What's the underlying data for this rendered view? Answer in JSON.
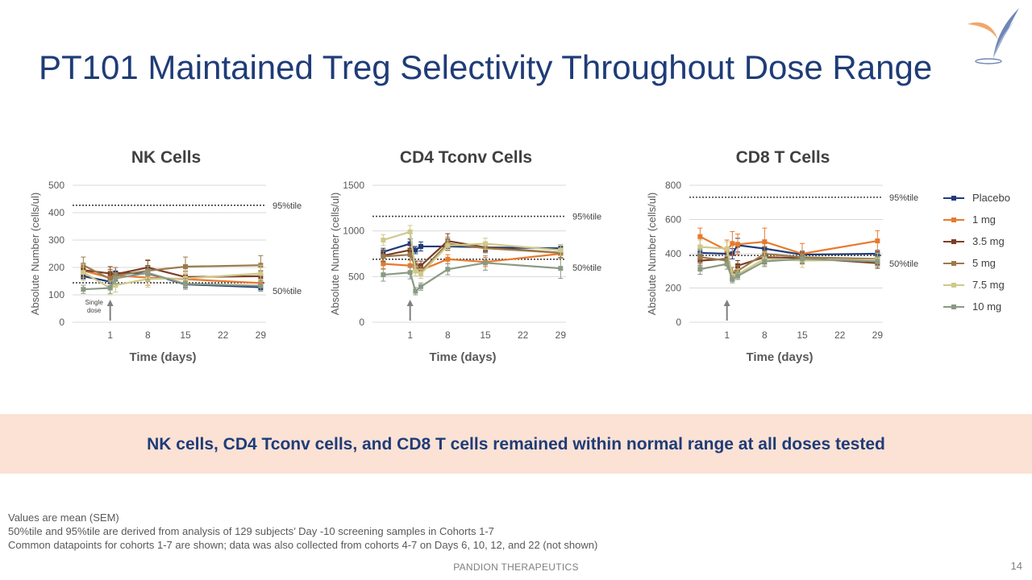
{
  "slide": {
    "title": "PT101 Maintained Treg Selectivity Throughout Dose Range",
    "banner": "NK cells, CD4 Tconv cells, and CD8 T cells remained within normal range at all doses tested",
    "footnotes": [
      "Values are mean (SEM)",
      "50%tile and 95%tile are derived from analysis of 129 subjects’ Day -10 screening samples in Cohorts 1-7",
      "Common datapoints for cohorts 1-7 are shown; data was also collected from cohorts 4-7 on Days 6, 10, 12, and 22 (not shown)"
    ],
    "footer": "PANDION THERAPEUTICS",
    "page_number": "14",
    "colors": {
      "title": "#1f3c78",
      "banner_bg": "#fbe2d5",
      "banner_text": "#1f3c78"
    }
  },
  "legend": [
    {
      "name": "Placebo",
      "color": "#1f3c78"
    },
    {
      "name": "1 mg",
      "color": "#e8792d"
    },
    {
      "name": "3.5 mg",
      "color": "#7b3f27"
    },
    {
      "name": "5 mg",
      "color": "#9b7b4b"
    },
    {
      "name": "7.5 mg",
      "color": "#cfc98b"
    },
    {
      "name": "10 mg",
      "color": "#8a9a84"
    }
  ],
  "chart_data": [
    {
      "type": "line",
      "title": "NK Cells",
      "xlabel": "Time (days)",
      "ylabel": "Absolute Number (cells/ul)",
      "x_ticks": [
        1,
        8,
        15,
        22,
        29
      ],
      "xlim": [
        -6,
        30
      ],
      "ylim": [
        0,
        500
      ],
      "y_ticks": [
        0,
        100,
        200,
        300,
        400,
        500
      ],
      "reference_lines": [
        {
          "label": "95%tile",
          "value": 427
        },
        {
          "label": "50%tile",
          "value": 144
        }
      ],
      "annotation": {
        "text": [
          "Single",
          "dose"
        ],
        "x": 1
      },
      "series": [
        {
          "name": "Placebo",
          "x": [
            -4,
            1,
            2,
            8,
            15,
            29
          ],
          "y": [
            168,
            148,
            180,
            178,
            138,
            128
          ],
          "err": [
            10,
            15,
            20,
            18,
            12,
            10
          ]
        },
        {
          "name": "1 mg",
          "x": [
            -4,
            1,
            2,
            8,
            15,
            29
          ],
          "y": [
            188,
            162,
            170,
            163,
            157,
            143
          ],
          "err": [
            25,
            30,
            30,
            28,
            20,
            15
          ]
        },
        {
          "name": "3.5 mg",
          "x": [
            -4,
            1,
            2,
            8,
            15,
            29
          ],
          "y": [
            190,
            178,
            175,
            200,
            165,
            168
          ],
          "err": [
            25,
            25,
            25,
            25,
            20,
            20
          ]
        },
        {
          "name": "5 mg",
          "x": [
            -4,
            1,
            2,
            8,
            15,
            29
          ],
          "y": [
            208,
            158,
            170,
            188,
            203,
            208
          ],
          "err": [
            30,
            35,
            30,
            40,
            35,
            35
          ]
        },
        {
          "name": "7.5 mg",
          "x": [
            -4,
            1,
            2,
            8,
            15,
            29
          ],
          "y": [
            182,
            125,
            135,
            158,
            160,
            178
          ],
          "err": [
            30,
            25,
            25,
            30,
            30,
            30
          ]
        },
        {
          "name": "10 mg",
          "x": [
            -4,
            1,
            2,
            8,
            15,
            29
          ],
          "y": [
            120,
            125,
            160,
            180,
            140,
            133
          ],
          "err": [
            15,
            20,
            20,
            25,
            20,
            20
          ]
        }
      ]
    },
    {
      "type": "line",
      "title": "CD4 Tconv Cells",
      "xlabel": "Time (days)",
      "ylabel": "Absolute Number (cells/ul)",
      "x_ticks": [
        1,
        8,
        15,
        22,
        29
      ],
      "xlim": [
        -6,
        30
      ],
      "ylim": [
        0,
        1500
      ],
      "y_ticks": [
        0,
        500,
        1000,
        1500
      ],
      "reference_lines": [
        {
          "label": "95%tile",
          "value": 1160
        },
        {
          "label": "50%tile",
          "value": 690
        }
      ],
      "series": [
        {
          "name": "Placebo",
          "x": [
            -4,
            1,
            2,
            3,
            8,
            15,
            29
          ],
          "y": [
            770,
            860,
            790,
            830,
            830,
            820,
            810
          ],
          "err": [
            40,
            50,
            40,
            50,
            40,
            40,
            40
          ]
        },
        {
          "name": "1 mg",
          "x": [
            -4,
            1,
            2,
            3,
            8,
            15,
            29
          ],
          "y": [
            640,
            620,
            620,
            570,
            690,
            660,
            750
          ],
          "err": [
            60,
            60,
            50,
            50,
            50,
            50,
            50
          ]
        },
        {
          "name": "3.5 mg",
          "x": [
            -4,
            1,
            2,
            3,
            8,
            15,
            29
          ],
          "y": [
            730,
            790,
            620,
            620,
            890,
            820,
            760
          ],
          "err": [
            60,
            60,
            50,
            50,
            80,
            50,
            50
          ]
        },
        {
          "name": "5 mg",
          "x": [
            -4,
            1,
            2,
            3,
            8,
            15,
            29
          ],
          "y": [
            720,
            740,
            610,
            560,
            860,
            810,
            760
          ],
          "err": [
            60,
            60,
            50,
            50,
            70,
            50,
            50
          ]
        },
        {
          "name": "7.5 mg",
          "x": [
            -4,
            1,
            2,
            3,
            8,
            15,
            29
          ],
          "y": [
            900,
            990,
            560,
            530,
            840,
            860,
            790
          ],
          "err": [
            60,
            70,
            50,
            50,
            60,
            60,
            60
          ]
        },
        {
          "name": "10 mg",
          "x": [
            -4,
            1,
            2,
            3,
            8,
            15,
            29
          ],
          "y": [
            520,
            545,
            340,
            390,
            580,
            650,
            590
          ],
          "err": [
            70,
            70,
            40,
            40,
            60,
            80,
            110
          ]
        }
      ]
    },
    {
      "type": "line",
      "title": "CD8 T Cells",
      "xlabel": "Time (days)",
      "ylabel": "Absolute Number (cells/ul)",
      "x_ticks": [
        1,
        8,
        15,
        22,
        29
      ],
      "xlim": [
        -6,
        30
      ],
      "ylim": [
        0,
        800
      ],
      "y_ticks": [
        0,
        200,
        400,
        600,
        800
      ],
      "reference_lines": [
        {
          "label": "95%tile",
          "value": 730
        },
        {
          "label": "50%tile",
          "value": 390
        }
      ],
      "series": [
        {
          "name": "Placebo",
          "x": [
            -4,
            1,
            2,
            3,
            8,
            15,
            29
          ],
          "y": [
            405,
            400,
            400,
            450,
            430,
            395,
            400
          ],
          "err": [
            20,
            20,
            30,
            40,
            30,
            20,
            20
          ]
        },
        {
          "name": "1 mg",
          "x": [
            -4,
            1,
            2,
            3,
            8,
            15,
            29
          ],
          "y": [
            500,
            420,
            460,
            455,
            470,
            400,
            475
          ],
          "err": [
            50,
            60,
            70,
            60,
            80,
            60,
            60
          ]
        },
        {
          "name": "3.5 mg",
          "x": [
            -4,
            1,
            2,
            3,
            8,
            15,
            29
          ],
          "y": [
            360,
            370,
            260,
            330,
            380,
            375,
            345
          ],
          "err": [
            30,
            30,
            20,
            30,
            40,
            30,
            30
          ]
        },
        {
          "name": "5 mg",
          "x": [
            -4,
            1,
            2,
            3,
            8,
            15,
            29
          ],
          "y": [
            380,
            360,
            290,
            300,
            400,
            380,
            370
          ],
          "err": [
            30,
            30,
            30,
            30,
            40,
            30,
            30
          ]
        },
        {
          "name": "7.5 mg",
          "x": [
            -4,
            1,
            2,
            3,
            8,
            15,
            29
          ],
          "y": [
            440,
            430,
            270,
            280,
            370,
            360,
            365
          ],
          "err": [
            40,
            40,
            30,
            30,
            40,
            40,
            40
          ]
        },
        {
          "name": "10 mg",
          "x": [
            -4,
            1,
            2,
            3,
            8,
            15,
            29
          ],
          "y": [
            310,
            340,
            250,
            270,
            355,
            370,
            355
          ],
          "err": [
            30,
            30,
            20,
            20,
            30,
            30,
            30
          ]
        }
      ]
    }
  ]
}
